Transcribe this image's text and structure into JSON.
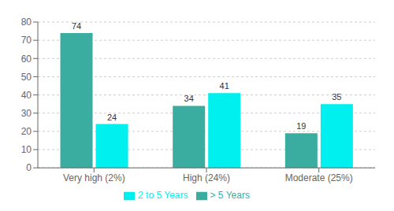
{
  "chart_data": {
    "type": "bar",
    "categories": [
      "Very high (2%)",
      "High (24%)",
      "Moderate (25%)"
    ],
    "series": [
      {
        "name": "> 5 Years",
        "color": "#3AADA0",
        "values": [
          74,
          34,
          19
        ]
      },
      {
        "name": "2 to 5 Years",
        "color": "#00EFEF",
        "values": [
          24,
          41,
          35
        ]
      }
    ],
    "ylim": [
      0,
      80
    ],
    "yticks": [
      0,
      10,
      20,
      30,
      40,
      50,
      60,
      70,
      80
    ],
    "grid": true,
    "legend": "bottom",
    "data_labels": true
  }
}
